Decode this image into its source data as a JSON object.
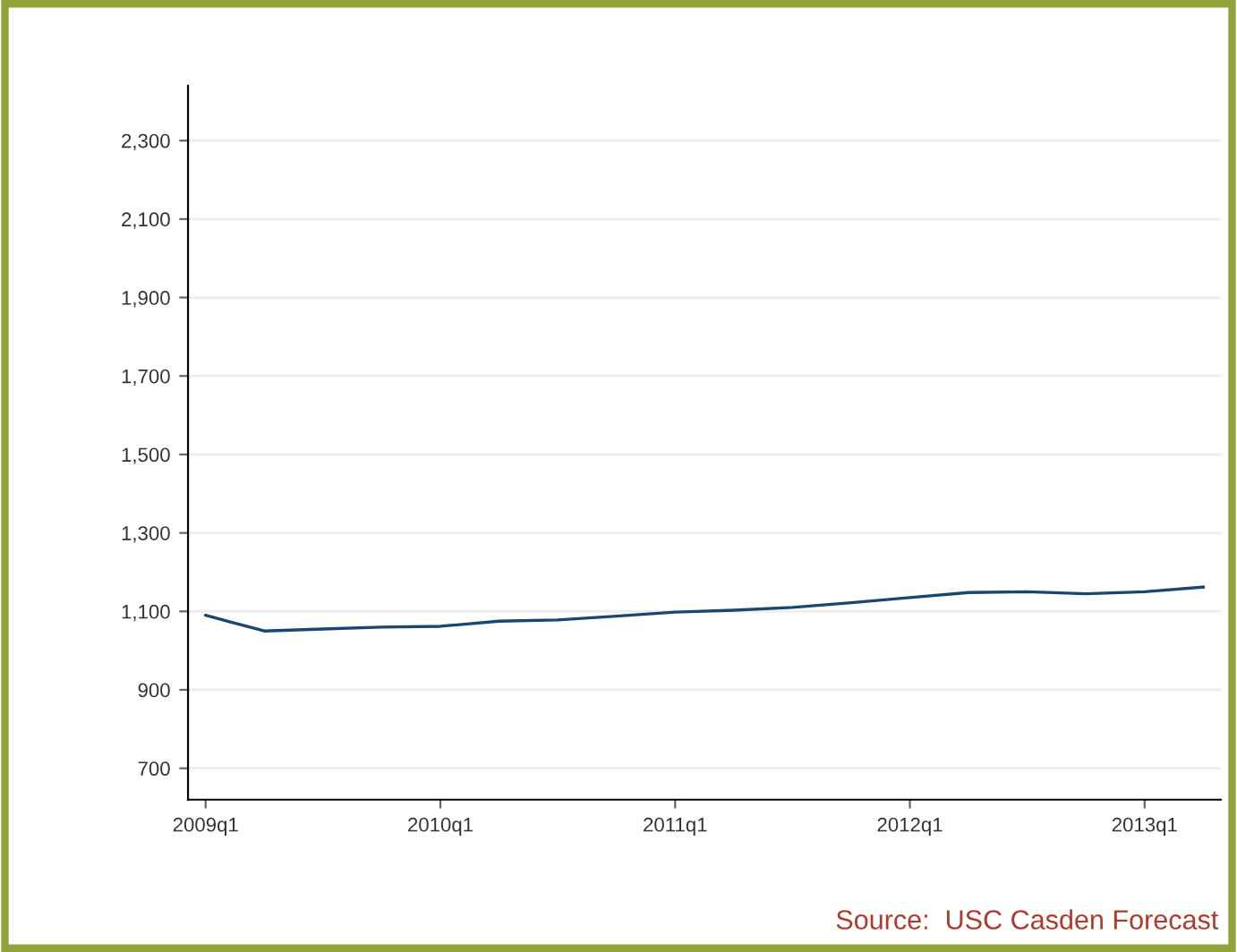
{
  "chart_data": {
    "type": "line",
    "categories": [
      "2009q1",
      null,
      null,
      null,
      "2010q1",
      null,
      null,
      null,
      "2011q1",
      null,
      null,
      null,
      "2012q1",
      null,
      null,
      null,
      "2013q1",
      null
    ],
    "series": [
      {
        "color": "#1a476f",
        "values": [
          1090,
          1050,
          1055,
          1060,
          1062,
          1075,
          1078,
          1088,
          1098,
          1103,
          1110,
          1122,
          1135,
          1148,
          1150,
          1145,
          1150,
          1162
        ]
      }
    ],
    "ylim": [
      620,
      2440
    ],
    "yticks": [
      {
        "value": 700,
        "label": "700"
      },
      {
        "value": 900,
        "label": "900"
      },
      {
        "value": 1100,
        "label": "1,100"
      },
      {
        "value": 1300,
        "label": "1,300"
      },
      {
        "value": 1500,
        "label": "1,500"
      },
      {
        "value": 1700,
        "label": "1,700"
      },
      {
        "value": 1900,
        "label": "1,900"
      },
      {
        "value": 2100,
        "label": "2,100"
      },
      {
        "value": 2300,
        "label": "2,300"
      }
    ],
    "grid": "y",
    "marker": "none",
    "line_style": "solid",
    "annotations": [
      "Source:  USC Casden Forecast"
    ]
  }
}
